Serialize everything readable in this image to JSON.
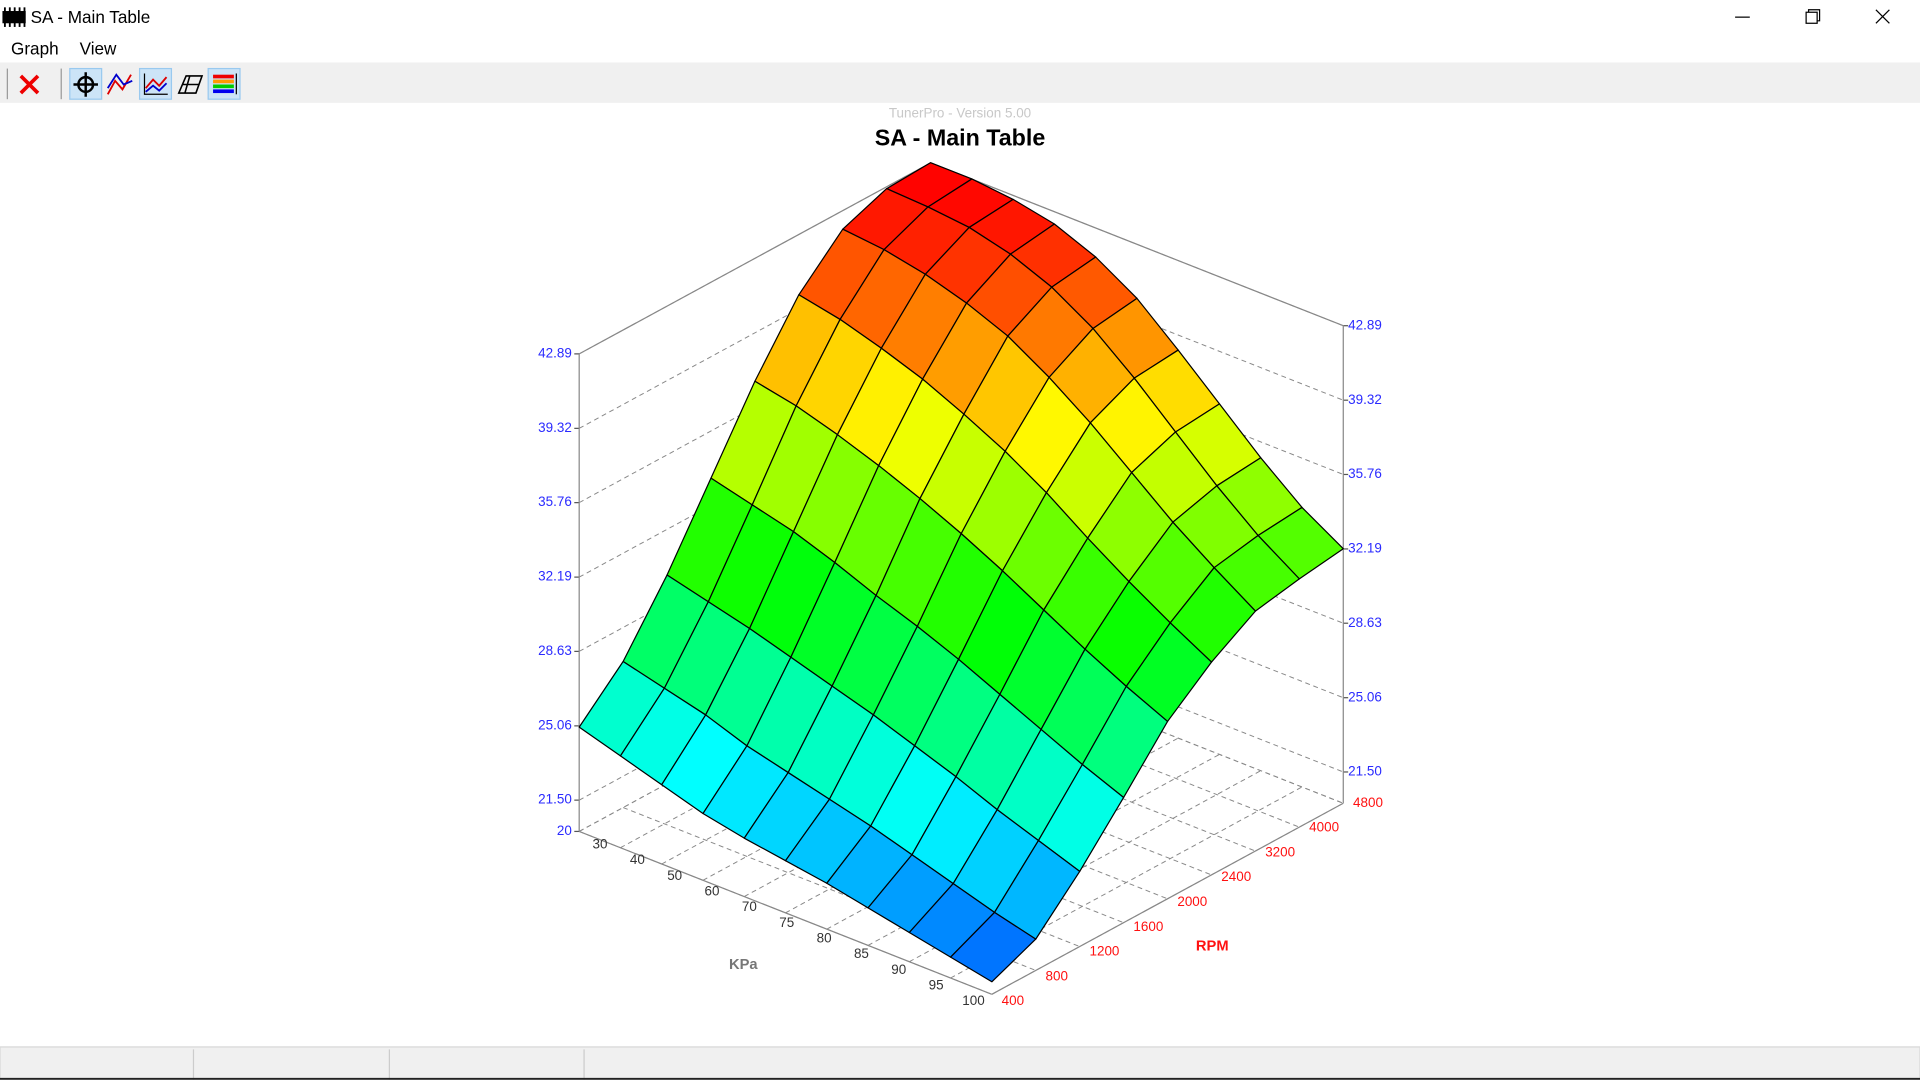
{
  "window": {
    "title": "SA - Main Table",
    "menu": [
      "Graph",
      "View"
    ]
  },
  "chart_data": {
    "type": "surface3d",
    "subtitle": "TunerPro - Version 5.00",
    "title": "SA - Main Table",
    "x_label": "KPa",
    "y_label": "RPM",
    "categories": [
      "30",
      "40",
      "50",
      "60",
      "70",
      "75",
      "80",
      "85",
      "90",
      "95",
      "100"
    ],
    "row_categories": [
      "400",
      "800",
      "1200",
      "1600",
      "2000",
      "2400",
      "3200",
      "4000",
      "4800"
    ],
    "values": [
      [
        25.0,
        24.4,
        23.8,
        23.2,
        22.8,
        22.5,
        22.2,
        21.8,
        21.4,
        21.0,
        20.6
      ],
      [
        27.0,
        26.5,
        26.0,
        25.3,
        24.8,
        24.3,
        23.8,
        23.2,
        22.6,
        22.0,
        21.5
      ],
      [
        30.0,
        29.5,
        29.0,
        28.4,
        27.8,
        27.2,
        26.5,
        25.8,
        25.0,
        24.3,
        23.6
      ],
      [
        33.5,
        33.0,
        32.5,
        31.8,
        31.0,
        30.3,
        29.5,
        28.6,
        27.7,
        26.8,
        26.0
      ],
      [
        37.0,
        36.6,
        36.0,
        35.3,
        34.5,
        33.6,
        32.6,
        31.5,
        30.4,
        29.4,
        28.5
      ],
      [
        40.0,
        39.6,
        39.0,
        38.3,
        37.4,
        36.4,
        35.2,
        33.8,
        32.5,
        31.3,
        30.2
      ],
      [
        42.0,
        41.8,
        41.4,
        40.8,
        40.0,
        38.8,
        37.4,
        35.8,
        34.2,
        32.8,
        31.5
      ],
      [
        42.8,
        42.7,
        42.5,
        42.0,
        41.2,
        40.0,
        38.4,
        36.6,
        34.8,
        33.2,
        31.9
      ],
      [
        42.9,
        42.9,
        42.7,
        42.3,
        41.5,
        40.3,
        38.6,
        36.8,
        35.0,
        33.4,
        32.2
      ]
    ],
    "zlim": [
      20,
      42.89
    ],
    "zticks": [
      20,
      {
        "value": 21.5,
        "label": "21.50"
      },
      25.06,
      28.63,
      32.19,
      35.76,
      39.32,
      42.89
    ],
    "grid": true
  }
}
